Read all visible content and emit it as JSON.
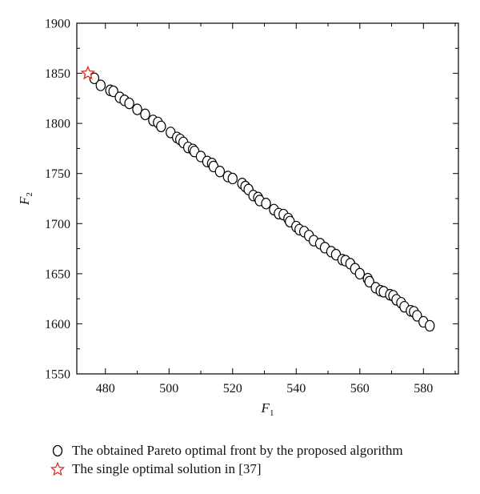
{
  "chart_data": {
    "type": "scatter",
    "xlabel": "F",
    "xlabel_sub": "1",
    "ylabel": "F",
    "ylabel_sub": "2",
    "xlim": [
      471,
      591
    ],
    "ylim": [
      1550,
      1900
    ],
    "xticks": [
      480,
      500,
      520,
      540,
      560,
      580
    ],
    "yticks": [
      1550,
      1600,
      1650,
      1700,
      1750,
      1800,
      1850,
      1900
    ],
    "grid": false,
    "legend_position": "bottom",
    "series": [
      {
        "name": "The obtained Pareto optimal front by the proposed algorithm",
        "marker": "circle",
        "color": "#000000",
        "x": [
          476.5,
          478.5,
          481.5,
          482.5,
          484.5,
          486,
          487.5,
          490,
          492.5,
          495,
          496.5,
          497.5,
          500.5,
          502.5,
          503.5,
          504.5,
          506,
          507.5,
          508,
          510,
          512,
          513.5,
          514,
          516,
          518.5,
          520,
          523,
          524,
          525,
          526.5,
          528,
          528.5,
          530.5,
          533,
          534.5,
          536,
          537.5,
          538,
          540,
          541,
          542.5,
          544,
          545.5,
          547.5,
          549,
          551,
          552.5,
          554.5,
          555.5,
          557,
          558.5,
          560,
          562.5,
          563,
          565,
          566.5,
          567.5,
          569.5,
          570.5,
          571.5,
          573,
          574,
          576,
          577,
          578,
          580,
          582
        ],
        "y": [
          1845,
          1838,
          1833,
          1832,
          1826,
          1823,
          1820,
          1814,
          1809,
          1803,
          1801,
          1797,
          1791,
          1786,
          1784,
          1781,
          1776,
          1774,
          1772,
          1767,
          1762,
          1760,
          1757,
          1752,
          1747,
          1745,
          1740,
          1737,
          1734,
          1728,
          1726,
          1723,
          1720,
          1714,
          1710,
          1709,
          1705,
          1702,
          1697,
          1694,
          1692,
          1688,
          1683,
          1680,
          1676,
          1672,
          1669,
          1664,
          1663,
          1660,
          1655,
          1650,
          1645,
          1642,
          1636,
          1633,
          1632,
          1629,
          1628,
          1624,
          1621,
          1617,
          1613,
          1612,
          1608,
          1602,
          1598
        ]
      },
      {
        "name": "The single optimal solution in [37]",
        "marker": "star",
        "color": "#e2231a",
        "x": [
          474.5
        ],
        "y": [
          1850
        ]
      }
    ]
  }
}
